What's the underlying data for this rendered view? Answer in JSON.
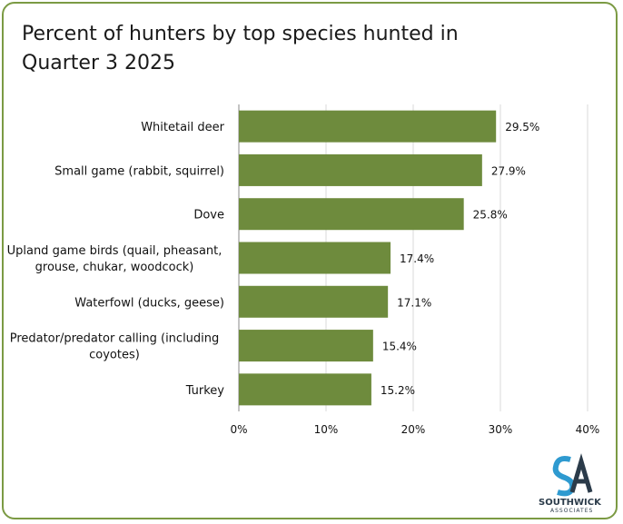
{
  "chart_data": {
    "type": "bar",
    "orientation": "horizontal",
    "title": "Percent of hunters by top species hunted in Quarter 3 2025",
    "categories": [
      [
        "Whitetail deer"
      ],
      [
        "Small game (rabbit, squirrel)"
      ],
      [
        "Dove"
      ],
      [
        "Upland game birds (quail, pheasant,",
        "grouse, chukar, woodcock)"
      ],
      [
        "Waterfowl (ducks, geese)"
      ],
      [
        "Predator/predator calling (including",
        "coyotes)"
      ],
      [
        "Turkey"
      ]
    ],
    "values": [
      29.5,
      27.9,
      25.8,
      17.4,
      17.1,
      15.4,
      15.2
    ],
    "value_labels": [
      "29.5%",
      "27.9%",
      "25.8%",
      "17.4%",
      "17.1%",
      "15.4%",
      "15.2%"
    ],
    "xlim": [
      0,
      40
    ],
    "x_ticks": [
      0,
      10,
      20,
      30,
      40
    ],
    "x_tick_labels": [
      "0%",
      "10%",
      "20%",
      "30%",
      "40%"
    ],
    "grid": true,
    "bar_color": "#6e8b3d"
  },
  "logo": {
    "name": "SOUTHWICK",
    "sub": "ASSOCIATES"
  },
  "colors": {
    "border": "#7b9a43",
    "grid": "#d9d9d9"
  }
}
